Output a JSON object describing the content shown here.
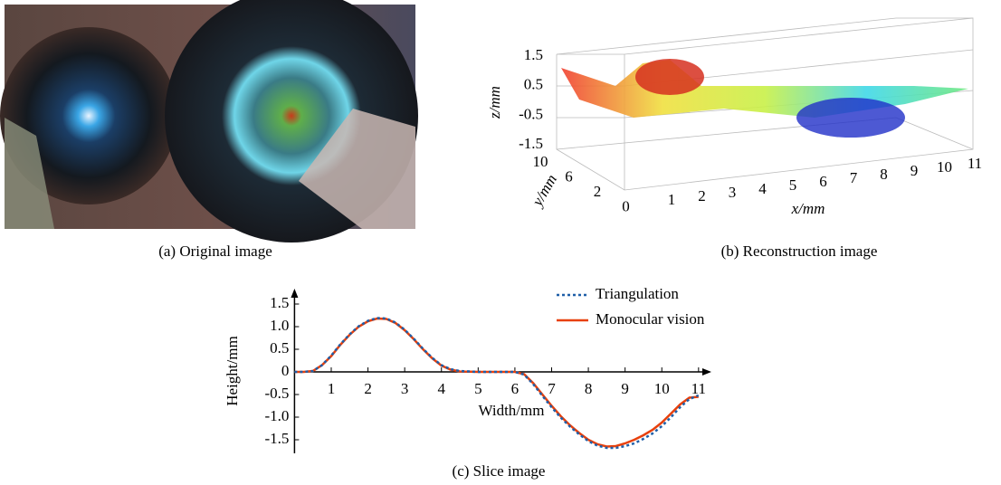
{
  "panel_a": {
    "caption": "(a) Original image"
  },
  "panel_b": {
    "caption": "(b) Reconstruction image",
    "z_label": "z/mm",
    "y_label": "y/mm",
    "x_label": "x/mm",
    "z_ticks": [
      "1.5",
      "0.5",
      "-0.5",
      "-1.5"
    ],
    "y_ticks": [
      "10",
      "6",
      "2",
      "0"
    ],
    "x_ticks": [
      "1",
      "2",
      "3",
      "4",
      "5",
      "6",
      "7",
      "8",
      "9",
      "10",
      "11"
    ]
  },
  "chart_data": {
    "type": "line",
    "caption": "(c) Slice image",
    "x_label": "Width/mm",
    "y_label": "Height/mm",
    "x": [
      0,
      0.25,
      0.5,
      0.75,
      1,
      1.25,
      1.5,
      1.75,
      2,
      2.25,
      2.5,
      2.75,
      3,
      3.25,
      3.5,
      3.75,
      4,
      4.25,
      4.5,
      5,
      5.5,
      6,
      6.25,
      6.5,
      6.75,
      7,
      7.25,
      7.5,
      7.75,
      8,
      8.25,
      8.5,
      8.75,
      9,
      9.25,
      9.5,
      9.75,
      10,
      10.25,
      10.5,
      10.75,
      11
    ],
    "series": [
      {
        "name": "Triangulation",
        "color": "#1f5fa8",
        "dash": true,
        "values": [
          0,
          0,
          0.02,
          0.15,
          0.36,
          0.61,
          0.83,
          1.01,
          1.13,
          1.19,
          1.18,
          1.09,
          0.93,
          0.73,
          0.51,
          0.31,
          0.15,
          0.06,
          0.02,
          0,
          0,
          0,
          -0.06,
          -0.27,
          -0.53,
          -0.78,
          -1.01,
          -1.21,
          -1.38,
          -1.53,
          -1.63,
          -1.68,
          -1.68,
          -1.64,
          -1.58,
          -1.48,
          -1.36,
          -1.2,
          -1.0,
          -0.78,
          -0.6,
          -0.52
        ]
      },
      {
        "name": "Monocular vision",
        "color": "#e8400c",
        "dash": false,
        "values": [
          0,
          0,
          0.02,
          0.15,
          0.35,
          0.6,
          0.82,
          1.0,
          1.12,
          1.18,
          1.17,
          1.08,
          0.92,
          0.72,
          0.5,
          0.3,
          0.14,
          0.05,
          0.01,
          0,
          0,
          0,
          -0.05,
          -0.25,
          -0.5,
          -0.75,
          -0.98,
          -1.18,
          -1.35,
          -1.5,
          -1.6,
          -1.65,
          -1.64,
          -1.58,
          -1.5,
          -1.4,
          -1.28,
          -1.12,
          -0.92,
          -0.72,
          -0.57,
          -0.55
        ]
      }
    ],
    "xlim": [
      0,
      11.3
    ],
    "ylim": [
      -1.8,
      1.8
    ],
    "xticks": [
      1,
      2,
      3,
      4,
      5,
      6,
      7,
      8,
      9,
      10,
      11
    ],
    "yticks": [
      {
        "value": 1.5,
        "label": "1.5"
      },
      {
        "value": 1,
        "label": "1.0"
      },
      {
        "value": 0.5,
        "label": "0.5"
      },
      0,
      {
        "value": -0.5,
        "label": "-0.5"
      },
      {
        "value": -1,
        "label": "-1.0"
      },
      {
        "value": -1.5,
        "label": "-1.5"
      }
    ]
  }
}
